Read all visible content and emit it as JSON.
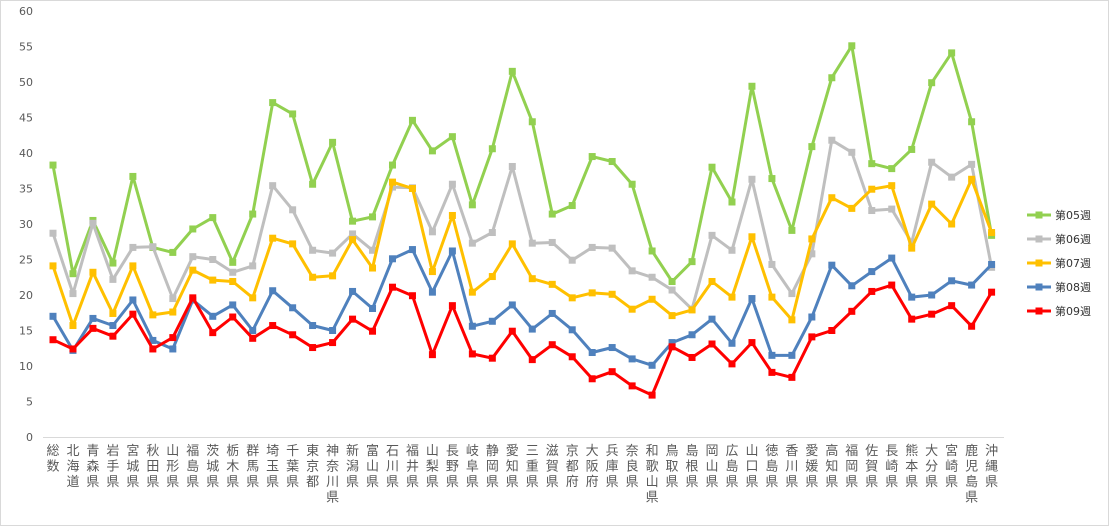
{
  "chart_data": {
    "type": "line",
    "categories": [
      "総数",
      "北海道",
      "青森県",
      "岩手県",
      "宮城県",
      "秋田県",
      "山形県",
      "福島県",
      "茨城県",
      "栃木県",
      "群馬県",
      "埼玉県",
      "千葉県",
      "東京都",
      "神奈川県",
      "新潟県",
      "富山県",
      "石川県",
      "福井県",
      "山梨県",
      "長野県",
      "岐阜県",
      "静岡県",
      "愛知県",
      "三重県",
      "滋賀県",
      "京都府",
      "大阪府",
      "兵庫県",
      "奈良県",
      "和歌山県",
      "鳥取県",
      "島根県",
      "岡山県",
      "広島県",
      "山口県",
      "徳島県",
      "香川県",
      "愛媛県",
      "高知県",
      "福岡県",
      "佐賀県",
      "長崎県",
      "熊本県",
      "大分県",
      "宮崎県",
      "鹿児島県",
      "沖縄県"
    ],
    "ylim": [
      0,
      60
    ],
    "yticks": [
      0,
      5,
      10,
      15,
      20,
      25,
      30,
      35,
      40,
      45,
      50,
      55,
      60
    ],
    "grid": false,
    "legend_position": "right",
    "series": [
      {
        "name": "第05週",
        "color": "#92d050",
        "values": [
          38.3,
          23.0,
          30.5,
          24.5,
          36.7,
          26.7,
          26.0,
          29.3,
          30.9,
          24.6,
          31.4,
          47.1,
          45.5,
          35.6,
          41.5,
          30.4,
          31.0,
          38.3,
          44.6,
          40.3,
          42.3,
          32.7,
          40.6,
          51.5,
          44.4,
          31.4,
          32.6,
          39.5,
          38.8,
          35.6,
          26.2,
          21.9,
          24.7,
          38.0,
          33.1,
          49.4,
          36.4,
          29.1,
          40.9,
          50.6,
          55.1,
          38.5,
          37.8,
          40.5,
          49.9,
          54.1,
          44.4,
          28.4
        ]
      },
      {
        "name": "第06週",
        "color": "#bfbfbf",
        "values": [
          28.7,
          20.2,
          30.1,
          22.2,
          26.7,
          26.8,
          19.5,
          25.4,
          25.0,
          23.2,
          24.1,
          35.4,
          32.0,
          26.3,
          25.9,
          28.6,
          26.3,
          35.2,
          35.1,
          28.9,
          35.6,
          27.3,
          28.8,
          38.1,
          27.3,
          27.4,
          24.9,
          26.7,
          26.6,
          23.4,
          22.5,
          20.7,
          18.0,
          28.4,
          26.3,
          36.3,
          24.3,
          20.2,
          25.8,
          41.8,
          40.1,
          31.9,
          32.1,
          27.4,
          38.7,
          36.6,
          38.4,
          23.9
        ]
      },
      {
        "name": "第07週",
        "color": "#ffc000",
        "values": [
          24.1,
          15.7,
          23.2,
          17.4,
          24.1,
          17.2,
          17.6,
          23.5,
          22.1,
          21.9,
          19.6,
          28.0,
          27.2,
          22.5,
          22.7,
          27.8,
          23.8,
          35.9,
          35.0,
          23.3,
          31.2,
          20.4,
          22.6,
          27.2,
          22.3,
          21.5,
          19.6,
          20.3,
          20.1,
          18.0,
          19.4,
          17.1,
          17.9,
          21.9,
          19.7,
          28.2,
          19.7,
          16.5,
          27.9,
          33.7,
          32.2,
          34.9,
          35.4,
          26.6,
          32.8,
          30.0,
          36.3,
          28.8
        ]
      },
      {
        "name": "第08週",
        "color": "#4f81bd",
        "values": [
          17.0,
          12.2,
          16.7,
          15.7,
          19.3,
          13.6,
          12.4,
          19.3,
          17.0,
          18.6,
          15.0,
          20.6,
          18.2,
          15.7,
          15.0,
          20.5,
          18.1,
          25.1,
          26.4,
          20.4,
          26.2,
          15.6,
          16.3,
          18.6,
          15.2,
          17.4,
          15.1,
          11.9,
          12.6,
          11.0,
          10.1,
          13.3,
          14.4,
          16.6,
          13.2,
          19.5,
          11.5,
          11.5,
          16.9,
          24.2,
          21.3,
          23.3,
          25.2,
          19.7,
          20.0,
          22.0,
          21.4,
          24.3
        ]
      },
      {
        "name": "第09週",
        "color": "#ff0000",
        "values": [
          13.7,
          12.4,
          15.3,
          14.2,
          17.3,
          12.4,
          14.0,
          19.6,
          14.7,
          16.9,
          13.9,
          15.7,
          14.4,
          12.6,
          13.3,
          16.6,
          14.9,
          21.1,
          19.9,
          11.6,
          18.5,
          11.7,
          11.1,
          14.9,
          10.9,
          13.0,
          11.3,
          8.2,
          9.2,
          7.2,
          5.9,
          12.7,
          11.2,
          13.1,
          10.3,
          13.3,
          9.1,
          8.4,
          14.1,
          15.0,
          17.7,
          20.5,
          21.4,
          16.6,
          17.3,
          18.5,
          15.6,
          20.4
        ]
      }
    ]
  }
}
